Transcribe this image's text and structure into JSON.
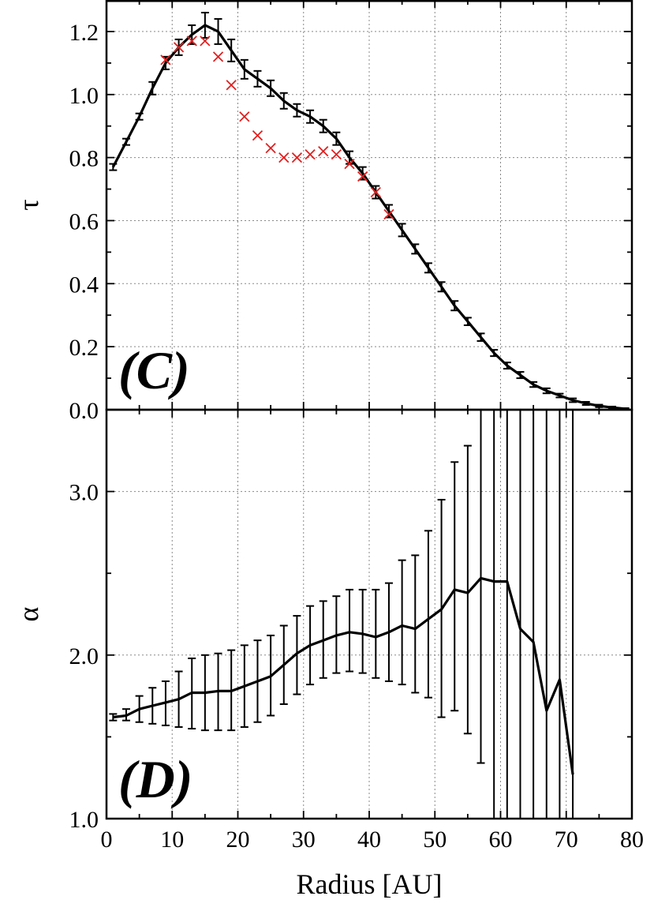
{
  "figure": {
    "xlabel": "Radius [AU]"
  },
  "chart_data": [
    {
      "type": "line",
      "panel_label": "(C)",
      "ylabel": "τ",
      "xlabel": "Radius [AU]",
      "xlim": [
        0,
        80
      ],
      "ylim": [
        0,
        1.3
      ],
      "x_ticks": [
        "0",
        "10",
        "20",
        "30",
        "40",
        "50",
        "60",
        "70",
        "80"
      ],
      "y_ticks": [
        "0.0",
        "0.2",
        "0.4",
        "0.6",
        "0.8",
        "1.0",
        "1.2"
      ],
      "y_tick_values": [
        0,
        0.2,
        0.4,
        0.6,
        0.8,
        1.0,
        1.2
      ],
      "grid": true,
      "series": [
        {
          "style": "line",
          "color": "#000000",
          "x": [
            1,
            3,
            5,
            7,
            9,
            11,
            13,
            15,
            17,
            19,
            21,
            23,
            25,
            27,
            29,
            31,
            33,
            35,
            37,
            39,
            41,
            43,
            45,
            47,
            49,
            51,
            53,
            55,
            57,
            59,
            61,
            63,
            65,
            67,
            69,
            71,
            73,
            75,
            77,
            79
          ],
          "values": [
            0.77,
            0.85,
            0.93,
            1.02,
            1.1,
            1.15,
            1.19,
            1.22,
            1.2,
            1.14,
            1.08,
            1.05,
            1.02,
            0.98,
            0.95,
            0.93,
            0.9,
            0.86,
            0.8,
            0.75,
            0.69,
            0.63,
            0.57,
            0.51,
            0.45,
            0.39,
            0.33,
            0.28,
            0.23,
            0.18,
            0.14,
            0.11,
            0.08,
            0.06,
            0.045,
            0.03,
            0.02,
            0.012,
            0.007,
            0.003
          ],
          "error": [
            0.01,
            0.01,
            0.01,
            0.02,
            0.02,
            0.025,
            0.03,
            0.04,
            0.04,
            0.035,
            0.03,
            0.025,
            0.025,
            0.025,
            0.02,
            0.02,
            0.02,
            0.02,
            0.02,
            0.02,
            0.02,
            0.02,
            0.02,
            0.015,
            0.015,
            0.015,
            0.015,
            0.012,
            0.012,
            0.01,
            0.01,
            0.01,
            0.008,
            0.008,
            0.006,
            0.006,
            0.005,
            0.004,
            0.003,
            0.002
          ]
        },
        {
          "style": "markers",
          "color": "#e02020",
          "x": [
            9,
            11,
            13,
            15,
            17,
            19,
            21,
            23,
            25,
            27,
            29,
            31,
            33,
            35,
            37,
            39,
            41,
            43
          ],
          "values": [
            1.11,
            1.15,
            1.17,
            1.17,
            1.12,
            1.03,
            0.93,
            0.87,
            0.83,
            0.8,
            0.8,
            0.81,
            0.82,
            0.81,
            0.78,
            0.74,
            0.69,
            0.62
          ]
        }
      ]
    },
    {
      "type": "line",
      "panel_label": "(D)",
      "ylabel": "α",
      "xlabel": "Radius [AU]",
      "xlim": [
        0,
        80
      ],
      "ylim": [
        1.0,
        3.5
      ],
      "x_ticks": [
        "0",
        "10",
        "20",
        "30",
        "40",
        "50",
        "60",
        "70",
        "80"
      ],
      "y_ticks": [
        "1.0",
        "2.0",
        "3.0"
      ],
      "y_tick_values": [
        1.0,
        2.0,
        3.0
      ],
      "grid": true,
      "series": [
        {
          "style": "line",
          "color": "#000000",
          "x": [
            1,
            3,
            5,
            7,
            9,
            11,
            13,
            15,
            17,
            19,
            21,
            23,
            25,
            27,
            29,
            31,
            33,
            35,
            37,
            39,
            41,
            43,
            45,
            47,
            49,
            51,
            53,
            55,
            57,
            59,
            61,
            63,
            65,
            67,
            69,
            71
          ],
          "values": [
            1.62,
            1.63,
            1.67,
            1.69,
            1.71,
            1.73,
            1.77,
            1.77,
            1.78,
            1.78,
            1.81,
            1.84,
            1.87,
            1.94,
            2.01,
            2.06,
            2.09,
            2.12,
            2.14,
            2.13,
            2.11,
            2.14,
            2.18,
            2.16,
            2.22,
            2.28,
            2.4,
            2.38,
            2.47,
            2.45,
            2.45,
            2.16,
            2.08,
            1.66,
            1.85,
            1.27
          ],
          "err_low": [
            1.6,
            1.6,
            1.59,
            1.58,
            1.57,
            1.56,
            1.55,
            1.54,
            1.54,
            1.54,
            1.56,
            1.59,
            1.63,
            1.7,
            1.76,
            1.82,
            1.86,
            1.89,
            1.9,
            1.89,
            1.86,
            1.84,
            1.82,
            1.77,
            1.74,
            1.62,
            1.66,
            1.52,
            1.34,
            0.95,
            0.95,
            0.95,
            0.95,
            0.95,
            0.95,
            0.95
          ],
          "err_high": [
            1.64,
            1.67,
            1.75,
            1.8,
            1.84,
            1.9,
            1.98,
            2.0,
            2.01,
            2.03,
            2.06,
            2.09,
            2.12,
            2.18,
            2.24,
            2.3,
            2.33,
            2.36,
            2.4,
            2.4,
            2.4,
            2.44,
            2.58,
            2.61,
            2.76,
            2.95,
            3.18,
            3.28,
            3.6,
            3.6,
            3.6,
            3.6,
            3.6,
            3.6,
            3.6,
            3.6
          ]
        }
      ]
    }
  ]
}
